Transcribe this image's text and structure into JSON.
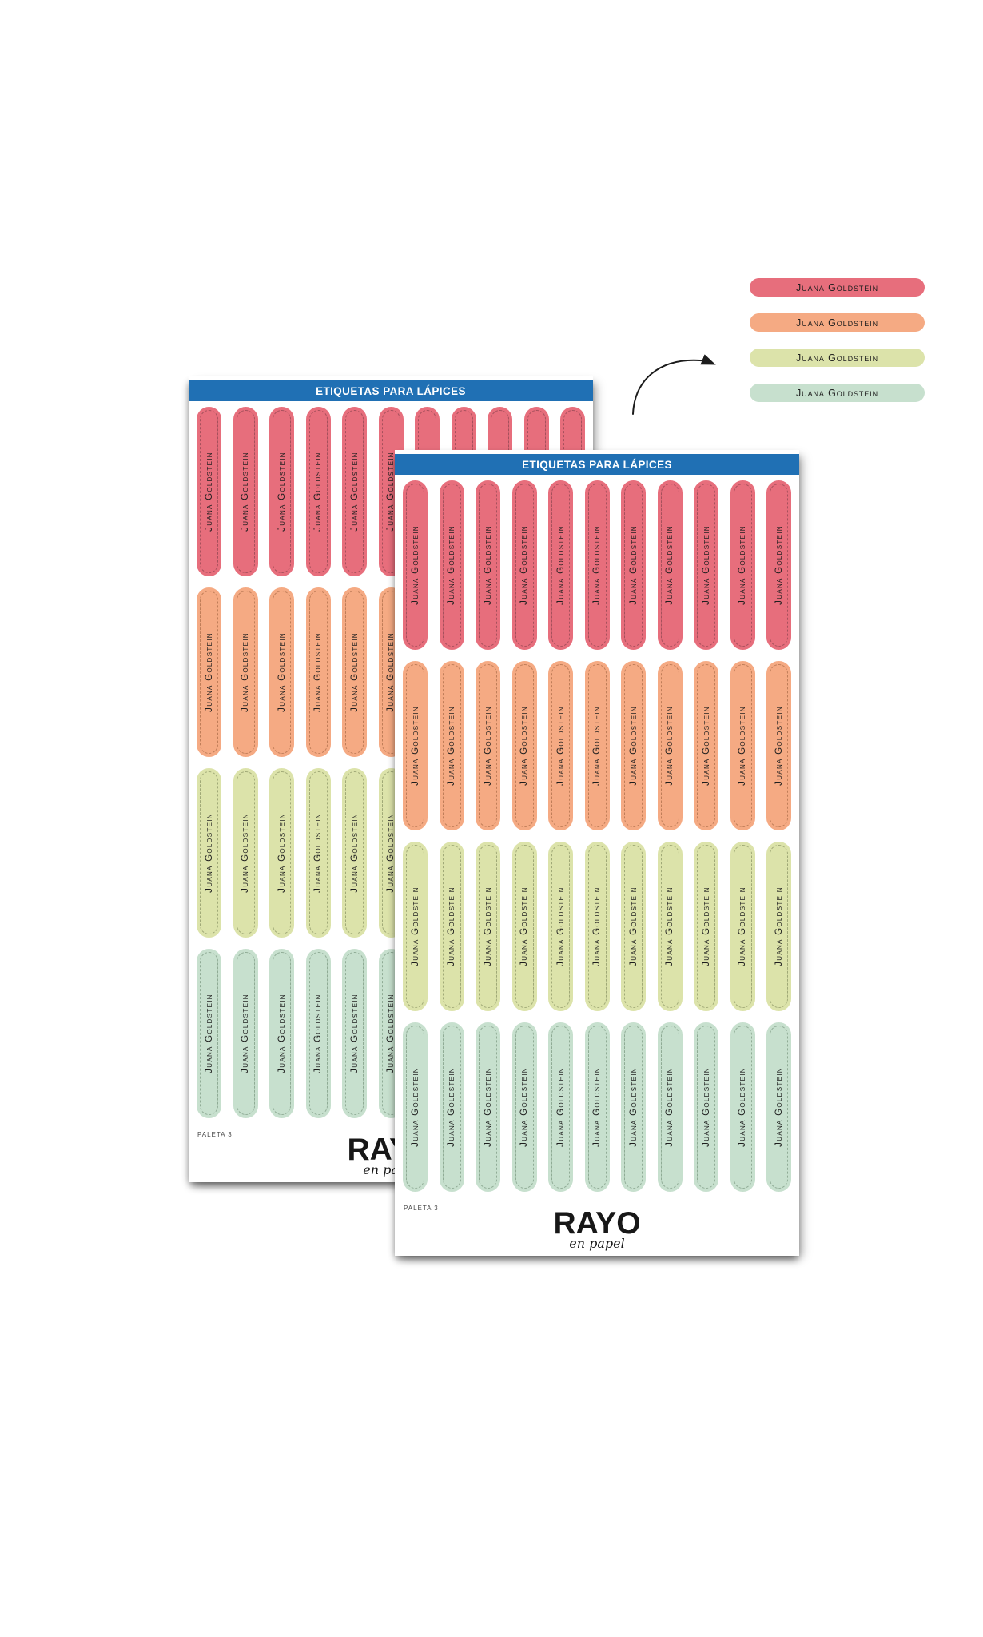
{
  "sheet": {
    "title": "ETIQUETAS PARA LÁPICES",
    "title_bar_color": "#2070B4",
    "label_text": "Juana Goldstein",
    "columns": 11,
    "rows": [
      {
        "name": "coral-red",
        "fill": "#E76E7C",
        "dash": "#A6505C"
      },
      {
        "name": "peach-orange",
        "fill": "#F5AA83",
        "dash": "#BF7D58"
      },
      {
        "name": "light-green",
        "fill": "#DCE3AA",
        "dash": "#A0A977"
      },
      {
        "name": "mint-teal",
        "fill": "#C7E0CE",
        "dash": "#8FAB95"
      }
    ],
    "footer_note": "PALETA 3",
    "brand_name": "RAYO",
    "brand_tagline": "en papel"
  },
  "swatches": {
    "label_text": "Juana Goldstein",
    "items": [
      {
        "name": "coral-red",
        "fill": "#E76E7C"
      },
      {
        "name": "peach-orange",
        "fill": "#F5AA83"
      },
      {
        "name": "light-green",
        "fill": "#DCE3AA"
      },
      {
        "name": "mint-teal",
        "fill": "#C7E0CE"
      }
    ]
  }
}
